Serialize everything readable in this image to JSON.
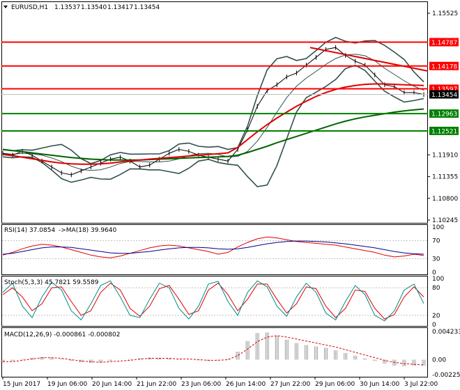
{
  "chart_data": {
    "type": "line",
    "symbol": "EURUSD,H1",
    "ohlc_readout": [
      "1.13537",
      "1.13540",
      "1.13417",
      "1.13454"
    ],
    "x_labels": [
      "15 Jun 2017",
      "19 Jun 06:00",
      "20 Jun 14:00",
      "21 Jun 22:00",
      "23 Jun 06:00",
      "26 Jun 14:00",
      "27 Jun 22:00",
      "29 Jun 06:00",
      "30 Jun 14:00",
      "3 Jul 22:00"
    ],
    "price_panel": {
      "y_ticks": [
        "1.15525",
        "1.14787",
        "1.14178",
        "1.13597",
        "1.13454",
        "1.12963",
        "1.12521",
        "1.11910",
        "1.11355",
        "1.10800",
        "1.10245"
      ],
      "ylim": [
        1.10245,
        1.15525
      ],
      "horizontal_levels": [
        {
          "value": 1.14787,
          "label": "1.14787",
          "color": "#ff0000"
        },
        {
          "value": 1.14178,
          "label": "1.14178",
          "color": "#ff0000"
        },
        {
          "value": 1.13597,
          "label": "1.13597",
          "color": "#ff0000"
        },
        {
          "value": 1.12963,
          "label": "1.12963",
          "color": "#008000"
        },
        {
          "value": 1.12521,
          "label": "1.12521",
          "color": "#008000"
        }
      ],
      "current_price": {
        "value": 1.13454,
        "label": "1.13454"
      },
      "close": [
        1.1195,
        1.119,
        1.12,
        1.119,
        1.1175,
        1.116,
        1.1145,
        1.114,
        1.115,
        1.116,
        1.117,
        1.118,
        1.1185,
        1.1175,
        1.116,
        1.1165,
        1.118,
        1.1195,
        1.1205,
        1.12,
        1.119,
        1.1185,
        1.118,
        1.1175,
        1.1205,
        1.1255,
        1.1315,
        1.1355,
        1.137,
        1.139,
        1.14,
        1.142,
        1.144,
        1.146,
        1.1465,
        1.1445,
        1.143,
        1.142,
        1.1395,
        1.137,
        1.1365,
        1.135,
        1.135,
        1.1345
      ],
      "ma_red": [
        1.1192,
        1.1189,
        1.1185,
        1.1181,
        1.1177,
        1.1173,
        1.117,
        1.1168,
        1.1167,
        1.1167,
        1.1168,
        1.117,
        1.1173,
        1.1176,
        1.1178,
        1.118,
        1.1182,
        1.1184,
        1.1186,
        1.1188,
        1.119,
        1.1192,
        1.1194,
        1.1196,
        1.121,
        1.123,
        1.125,
        1.1268,
        1.1285,
        1.13,
        1.1315,
        1.1328,
        1.134,
        1.135,
        1.1358,
        1.1364,
        1.1368,
        1.1371,
        1.1372,
        1.1372,
        1.1371,
        1.137,
        1.1369,
        1.1368
      ],
      "ma_green": [
        1.1205,
        1.1202,
        1.1199,
        1.1196,
        1.1193,
        1.119,
        1.1187,
        1.1184,
        1.1182,
        1.118,
        1.1179,
        1.1178,
        1.1178,
        1.1178,
        1.1178,
        1.1179,
        1.118,
        1.1181,
        1.1182,
        1.1183,
        1.1184,
        1.1185,
        1.1186,
        1.1187,
        1.119,
        1.1197,
        1.1205,
        1.1213,
        1.1222,
        1.123,
        1.1238,
        1.1246,
        1.1254,
        1.1262,
        1.127,
        1.1277,
        1.1283,
        1.1288,
        1.1292,
        1.1296,
        1.13,
        1.1303,
        1.1306,
        1.1308
      ],
      "trend_line": [
        [
          0.73,
          1.1465
        ],
        [
          1.0,
          1.1405
        ]
      ]
    },
    "rsi_panel": {
      "title": "RSI(14) 37.0854",
      "ma_label": "->MA(18) 39.9640",
      "y_ticks": [
        "100",
        "70",
        "30",
        "0"
      ],
      "ylim": [
        0,
        100
      ],
      "rsi": [
        38,
        44,
        52,
        58,
        62,
        60,
        56,
        50,
        44,
        38,
        34,
        32,
        36,
        42,
        48,
        54,
        58,
        60,
        58,
        54,
        50,
        46,
        40,
        44,
        56,
        66,
        74,
        78,
        76,
        72,
        68,
        66,
        64,
        62,
        60,
        56,
        52,
        48,
        44,
        38,
        34,
        36,
        40,
        37
      ],
      "rsi_ma": [
        40,
        42,
        46,
        50,
        54,
        56,
        56,
        55,
        52,
        49,
        46,
        43,
        42,
        42,
        44,
        46,
        49,
        52,
        54,
        55,
        55,
        54,
        52,
        51,
        52,
        55,
        59,
        63,
        66,
        68,
        69,
        69,
        68,
        67,
        65,
        63,
        60,
        57,
        54,
        50,
        46,
        43,
        41,
        40
      ]
    },
    "stoch_panel": {
      "title": "Stoch(5,3,3) 45.7821 59.5589",
      "y_ticks": [
        "100",
        "80",
        "20",
        "0"
      ],
      "ylim": [
        0,
        100
      ],
      "main": [
        70,
        90,
        40,
        15,
        60,
        92,
        75,
        30,
        10,
        45,
        85,
        95,
        60,
        20,
        15,
        55,
        90,
        80,
        35,
        12,
        40,
        88,
        94,
        50,
        20,
        70,
        95,
        82,
        40,
        18,
        60,
        90,
        70,
        25,
        10,
        50,
        85,
        65,
        20,
        8,
        30,
        75,
        88,
        46
      ],
      "signal": [
        65,
        80,
        60,
        30,
        45,
        80,
        82,
        50,
        20,
        30,
        70,
        90,
        75,
        35,
        18,
        40,
        78,
        85,
        55,
        22,
        30,
        75,
        90,
        65,
        30,
        55,
        88,
        88,
        55,
        25,
        45,
        82,
        78,
        40,
        15,
        35,
        75,
        72,
        35,
        12,
        22,
        60,
        82,
        60
      ]
    },
    "macd_panel": {
      "title": "MACD(12,26,9) -0.000861 -0.000802",
      "y_ticks": [
        "0.004233",
        "0.00",
        "-0.002256"
      ],
      "ylim": [
        -0.002256,
        0.004233
      ],
      "histogram": [
        -0.0004,
        -0.0002,
        0.0001,
        0.0003,
        0.0004,
        0.0003,
        0.0001,
        -0.0002,
        -0.0004,
        -0.0005,
        -0.0004,
        -0.0002,
        0.0,
        0.0001,
        0.0002,
        0.0003,
        0.0003,
        0.0002,
        0.0001,
        0.0,
        -0.0001,
        -0.0002,
        -0.0001,
        0.0001,
        0.0012,
        0.0028,
        0.004,
        0.0041,
        0.0036,
        0.003,
        0.0025,
        0.0022,
        0.002,
        0.0018,
        0.0014,
        0.001,
        0.0006,
        0.0002,
        -0.0002,
        -0.0006,
        -0.0009,
        -0.001,
        -0.0009,
        -0.0009
      ],
      "signal": [
        -0.0003,
        -0.0003,
        -0.0001,
        0.0001,
        0.0003,
        0.0003,
        0.0002,
        0.0,
        -0.0002,
        -0.0003,
        -0.0004,
        -0.0003,
        -0.0002,
        -0.0001,
        0.0001,
        0.0002,
        0.0002,
        0.0002,
        0.0001,
        0.0001,
        0.0,
        -0.0001,
        -0.0001,
        0.0,
        0.0006,
        0.0016,
        0.0027,
        0.0034,
        0.0036,
        0.0034,
        0.0031,
        0.0028,
        0.0025,
        0.0022,
        0.0019,
        0.0015,
        0.0011,
        0.0007,
        0.0003,
        -0.0001,
        -0.0004,
        -0.0006,
        -0.0007,
        -0.0008
      ]
    }
  }
}
